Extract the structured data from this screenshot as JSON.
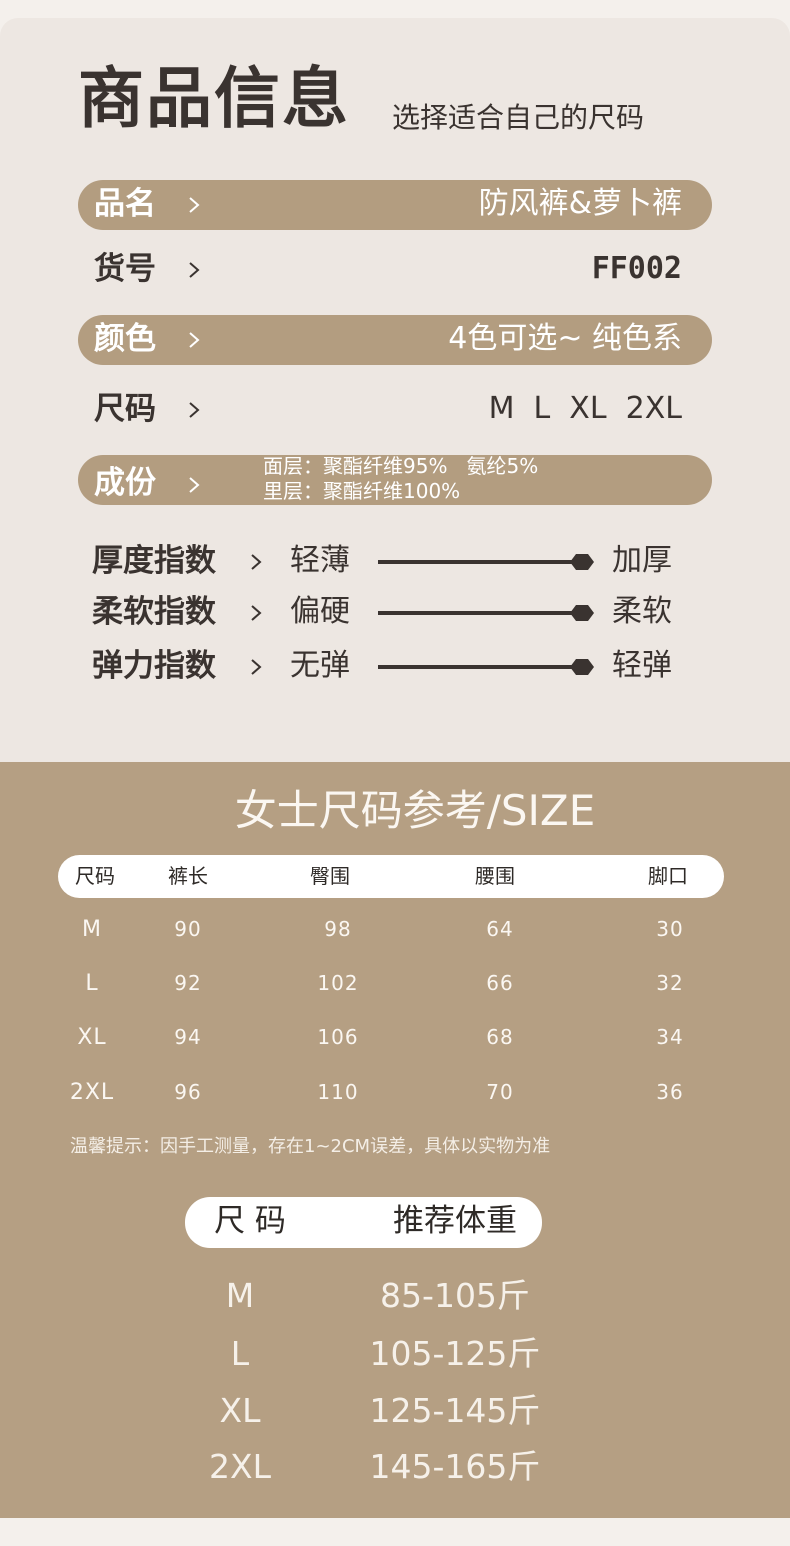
{
  "header": {
    "title": "商品信息",
    "subtitle": "选择适合自己的尺码"
  },
  "info": [
    {
      "label": "品名",
      "value": "防风裤&萝卜裤"
    },
    {
      "label": "货号",
      "value": "FF002"
    },
    {
      "label": "颜色",
      "value": "4色可选~ 纯色系"
    },
    {
      "label": "尺码",
      "value": "M  L  XL  2XL"
    }
  ],
  "composition": {
    "label": "成份",
    "lines": [
      "面层：聚酯纤维95%   氨纶5%",
      "里层：聚酯纤维100%"
    ]
  },
  "indices": [
    {
      "label": "厚度指数",
      "left": "轻薄",
      "right": "加厚"
    },
    {
      "label": "柔软指数",
      "left": "偏硬",
      "right": "柔软"
    },
    {
      "label": "弹力指数",
      "left": "无弹",
      "right": "轻弹"
    }
  ],
  "size_table": {
    "title": "女士尺码参考/SIZE",
    "headers": [
      "尺码",
      "裤长",
      "臀围",
      "腰围",
      "脚口"
    ],
    "rows": [
      [
        "M",
        90,
        98,
        64,
        30
      ],
      [
        "L",
        92,
        102,
        66,
        32
      ],
      [
        "XL",
        94,
        106,
        68,
        34
      ],
      [
        "2XL",
        96,
        110,
        70,
        36
      ]
    ],
    "note": "温馨提示：因手工测量，存在1~2CM误差，具体以实物为准"
  },
  "weight_table": {
    "headers": [
      "尺 码",
      "推荐体重"
    ],
    "rows": [
      [
        "M",
        "85-105斤"
      ],
      [
        "L",
        "105-125斤"
      ],
      [
        "XL",
        "125-145斤"
      ],
      [
        "2XL",
        "145-165斤"
      ]
    ]
  }
}
